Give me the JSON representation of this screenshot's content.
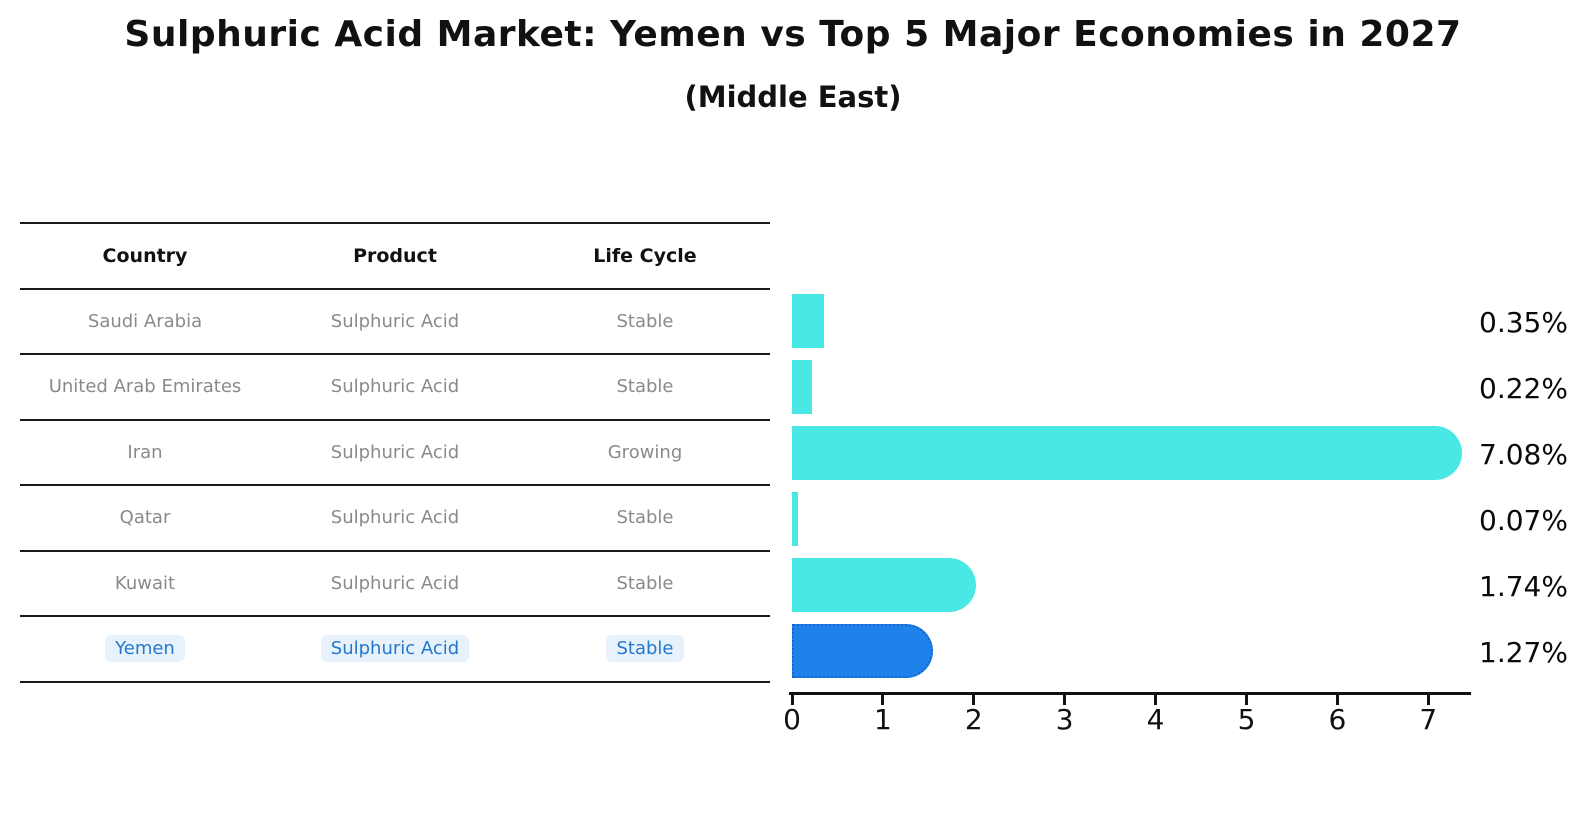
{
  "title": "Sulphuric Acid Market: Yemen vs Top 5 Major Economies in 2027",
  "subtitle": "(Middle East)",
  "table": {
    "headers": {
      "country": "Country",
      "product": "Product",
      "life_cycle": "Life Cycle"
    },
    "rows": [
      {
        "country": "Saudi Arabia",
        "product": "Sulphuric Acid",
        "life_cycle": "Stable",
        "highlighted": false
      },
      {
        "country": "United Arab Emirates",
        "product": "Sulphuric Acid",
        "life_cycle": "Stable",
        "highlighted": false
      },
      {
        "country": "Iran",
        "product": "Sulphuric Acid",
        "life_cycle": "Growing",
        "highlighted": false
      },
      {
        "country": "Qatar",
        "product": "Sulphuric Acid",
        "life_cycle": "Stable",
        "highlighted": false
      },
      {
        "country": "Kuwait",
        "product": "Sulphuric Acid",
        "life_cycle": "Stable",
        "highlighted": false
      },
      {
        "country": "Yemen",
        "product": "Sulphuric Acid",
        "life_cycle": "Stable",
        "highlighted": true
      }
    ]
  },
  "chart_data": {
    "type": "bar",
    "orientation": "horizontal",
    "title": "Sulphuric Acid Market: Yemen vs Top 5 Major Economies in 2027 (Middle East)",
    "categories": [
      "Saudi Arabia",
      "United Arab Emirates",
      "Iran",
      "Qatar",
      "Kuwait",
      "Yemen"
    ],
    "values": [
      0.35,
      0.22,
      7.08,
      0.07,
      1.74,
      1.27
    ],
    "value_labels": [
      "0.35%",
      "0.22%",
      "7.08%",
      "0.07%",
      "1.74%",
      "1.27%"
    ],
    "xticks": [
      "0",
      "1",
      "2",
      "3",
      "4",
      "5",
      "6",
      "7"
    ],
    "xlim": [
      0,
      7.46
    ],
    "grid": false,
    "legend": "none",
    "bar_color": "#49e8e5",
    "highlight_bar_color": "#1e82ea",
    "highlight_border_color": "#1565cc",
    "highlight_index": 5
  },
  "colors": {
    "text_primary": "#111111",
    "text_muted": "#8a8a8a",
    "highlight_text": "#2478cb",
    "axis": "#111111"
  }
}
